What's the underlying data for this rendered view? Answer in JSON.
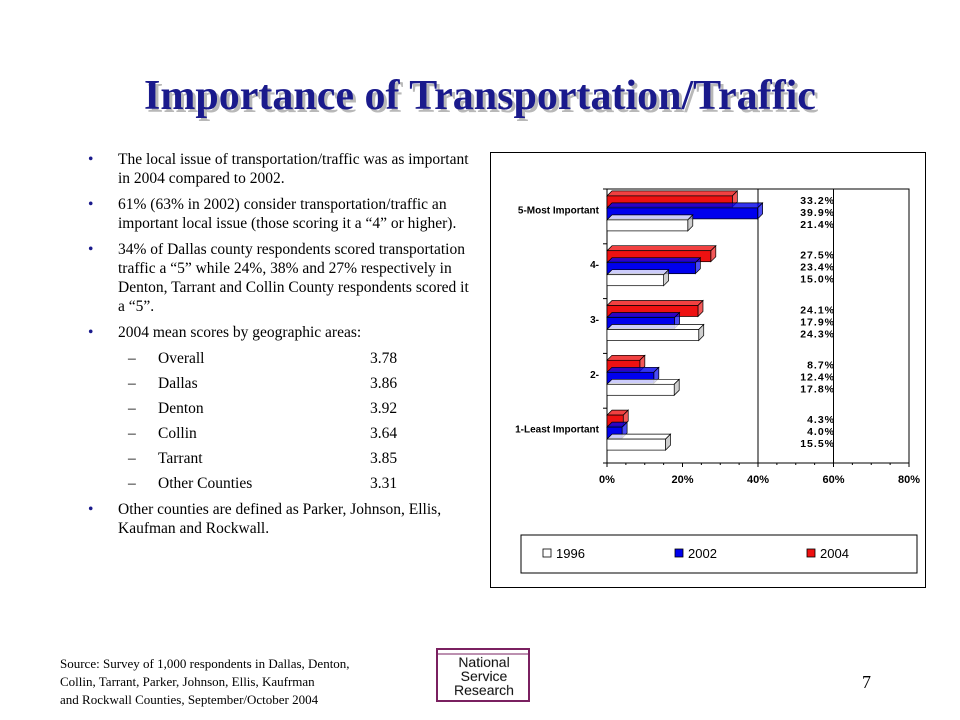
{
  "slide": {
    "title": "Importance of Transportation/Traffic",
    "bullets": [
      "The local issue of transportation/traffic was as important in 2004 compared to 2002.",
      "61% (63% in 2002) consider transportation/traffic an important local issue (those scoring it a “4” or higher).",
      "34% of Dallas county respondents scored transportation traffic a “5” while 24%, 38% and 27% respectively in Denton, Tarrant and Collin County respondents scored it a “5”.",
      "2004 mean scores by geographic areas:"
    ],
    "bullet_mark": "•",
    "dash_mark": "–",
    "mean_scores": [
      {
        "area": "Overall",
        "score": "3.78"
      },
      {
        "area": "Dallas",
        "score": "3.86"
      },
      {
        "area": "Denton",
        "score": "3.92"
      },
      {
        "area": "Collin",
        "score": "3.64"
      },
      {
        "area": "Tarrant",
        "score": "3.85"
      },
      {
        "area": "Other Counties",
        "score": "3.31"
      }
    ],
    "last_bullet": "Other counties are defined as Parker, Johnson, Ellis, Kaufman and Rockwall.",
    "source_lines": [
      "Source: Survey of 1,000 respondents in Dallas, Denton,",
      "Collin, Tarrant, Parker, Johnson, Ellis, Kaufrman",
      "and Rockwall Counties, September/October 2004"
    ],
    "logo_lines": [
      "National",
      "Service",
      "Research"
    ],
    "page_number": "7"
  },
  "colors": {
    "title": "#1a1a8c",
    "series_1996": "#ffffff",
    "series_2002": "#0000ee",
    "series_2004": "#ee1111",
    "logo_border": "#7a2060"
  },
  "chart_data": {
    "type": "bar",
    "orientation": "horizontal",
    "categories": [
      "5-Most Important",
      "4-",
      "3-",
      "2-",
      "1-Least Important"
    ],
    "series": [
      {
        "name": "2004",
        "values": [
          33.2,
          27.5,
          24.1,
          8.7,
          4.3
        ],
        "color": "#ee1111"
      },
      {
        "name": "2002",
        "values": [
          39.9,
          23.4,
          17.9,
          12.4,
          4.0
        ],
        "color": "#0000ee"
      },
      {
        "name": "1996",
        "values": [
          21.4,
          15.0,
          24.3,
          17.8,
          15.5
        ],
        "color": "#ffffff"
      }
    ],
    "data_labels": [
      [
        "33.2%",
        "39.9%",
        "21.4%"
      ],
      [
        "27.5%",
        "23.4%",
        "15.0%"
      ],
      [
        "24.1%",
        "17.9%",
        "24.3%"
      ],
      [
        "8.7%",
        "12.4%",
        "17.8%"
      ],
      [
        "4.3%",
        "4.0%",
        "15.5%"
      ]
    ],
    "xlim": [
      0,
      80
    ],
    "xticks": [
      "0%",
      "20%",
      "40%",
      "60%",
      "80%"
    ],
    "legend": [
      "1996",
      "2002",
      "2004"
    ],
    "legend_position": "bottom"
  }
}
